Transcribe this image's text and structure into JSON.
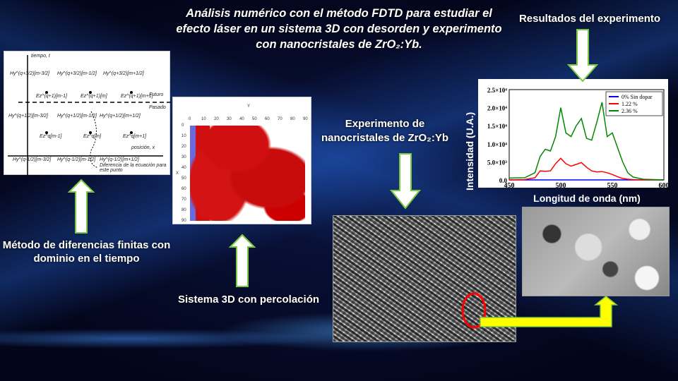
{
  "title": "Análisis numérico con el método FDTD para estudiar el efecto láser en un sistema 3D con desorden y experimento con nanocristales de ZrO₂:Yb.",
  "labels": {
    "fdtd": "Método de diferencias finitas con dominio en el tiempo",
    "system3d": "Sistema 3D con percolación",
    "experiment": "Experimento de nanocristales de ZrO₂:Yb",
    "results": "Resultados del experimento"
  },
  "fdtd_diagram": {
    "time_axis": "tiempo, t",
    "position_axis": "posición, x",
    "future": "Futuro",
    "past": "Pasado",
    "note": "Diferencia de la ecuación para este punto",
    "row1": [
      "Hy^(q+3/2)[m-3/2]",
      "Hy^(q+3/2)[m-1/2]",
      "Hy^(q+3/2)[m+1/2]"
    ],
    "row2": [
      "Ez^(q+1)[m-1]",
      "Ez^(q+1)[m]",
      "Ez^(q+1)[m+1]"
    ],
    "row3": [
      "Hy^(q+1/2)[m-3/2]",
      "Hy^(q+1/2)[m-1/2]",
      "Hy^(q+1/2)[m+1/2]"
    ],
    "row4": [
      "Ez^q[m-1]",
      "Ez^q[m]",
      "Ez^q[m+1]"
    ],
    "row5": [
      "Hy^(q-1/2)[m-3/2]",
      "Hy^(q-1/2)[m-1/2]",
      "Hy^(q-1/2)[m+1/2]"
    ]
  },
  "percolation_plot": {
    "xlabel": "Y",
    "ylabel": "X",
    "xticks": [
      "0",
      "10",
      "20",
      "30",
      "40",
      "50",
      "60",
      "70",
      "80",
      "90"
    ],
    "yticks": [
      "0",
      "10",
      "20",
      "30",
      "40",
      "50",
      "60",
      "70",
      "80",
      "90"
    ]
  },
  "chart_data": {
    "type": "line",
    "xlabel": "Longitud de onda (nm)",
    "ylabel": "Intensidad (U.A.)",
    "xlim": [
      450,
      600
    ],
    "ylim": [
      0,
      25000
    ],
    "xticks": [
      "450",
      "500",
      "550",
      "600"
    ],
    "yticks": [
      "0.0",
      "5.0×10³",
      "1.0×10⁴",
      "1.5×10⁴",
      "2.0×10⁴",
      "2.5×10⁴"
    ],
    "legend": "top-right",
    "x": [
      450,
      465,
      475,
      480,
      485,
      490,
      495,
      500,
      505,
      510,
      515,
      520,
      525,
      530,
      535,
      540,
      545,
      550,
      555,
      560,
      565,
      570,
      580,
      600
    ],
    "series": [
      {
        "name": "0% Sin dopar",
        "color": "#0000ff",
        "values": [
          0,
          0,
          0,
          0,
          0,
          0,
          0,
          0,
          0,
          0,
          0,
          0,
          0,
          0,
          0,
          0,
          0,
          0,
          0,
          0,
          0,
          0,
          0,
          0
        ]
      },
      {
        "name": "1.22 %",
        "color": "#ff0000",
        "values": [
          0,
          100,
          600,
          2500,
          2400,
          2500,
          4500,
          6000,
          4500,
          3800,
          4300,
          4800,
          3500,
          2500,
          2200,
          2300,
          2000,
          1500,
          900,
          400,
          200,
          100,
          0,
          0
        ]
      },
      {
        "name": "2.36 %",
        "color": "#008800",
        "values": [
          500,
          600,
          2000,
          6500,
          8500,
          8000,
          12000,
          20000,
          13000,
          12000,
          15000,
          17000,
          11500,
          11000,
          16000,
          21500,
          12000,
          13000,
          9000,
          5000,
          2000,
          800,
          200,
          0
        ]
      }
    ]
  },
  "colors": {
    "arrow_fill": "#ffffff",
    "arrow_stroke": "#7ac943",
    "connector": "#ffff00",
    "highlight_circle": "#ff0000"
  }
}
